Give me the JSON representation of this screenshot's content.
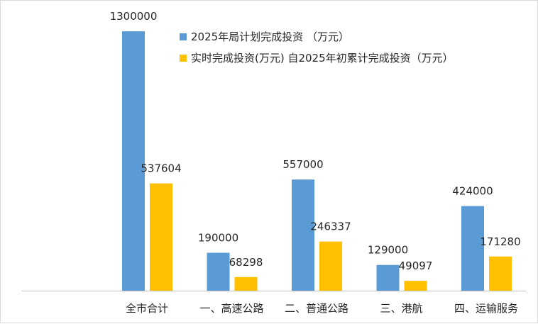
{
  "chart_data": {
    "type": "bar",
    "categories": [
      "全市合计",
      "一、高速公路",
      "二、普通公路",
      "三、港航",
      "四、运输服务"
    ],
    "series": [
      {
        "name": "2025年局计划完成投资 （万元）",
        "color": "#5b9bd5",
        "values": [
          1300000,
          190000,
          557000,
          129000,
          424000
        ]
      },
      {
        "name": "实时完成投资(万元) 自2025年初累计完成投资（万元）",
        "color": "#ffc000",
        "values": [
          537604,
          68298,
          246337,
          49097,
          171280
        ]
      }
    ],
    "ylim": [
      0,
      1400000
    ],
    "grid": false,
    "legend_position": "top"
  }
}
